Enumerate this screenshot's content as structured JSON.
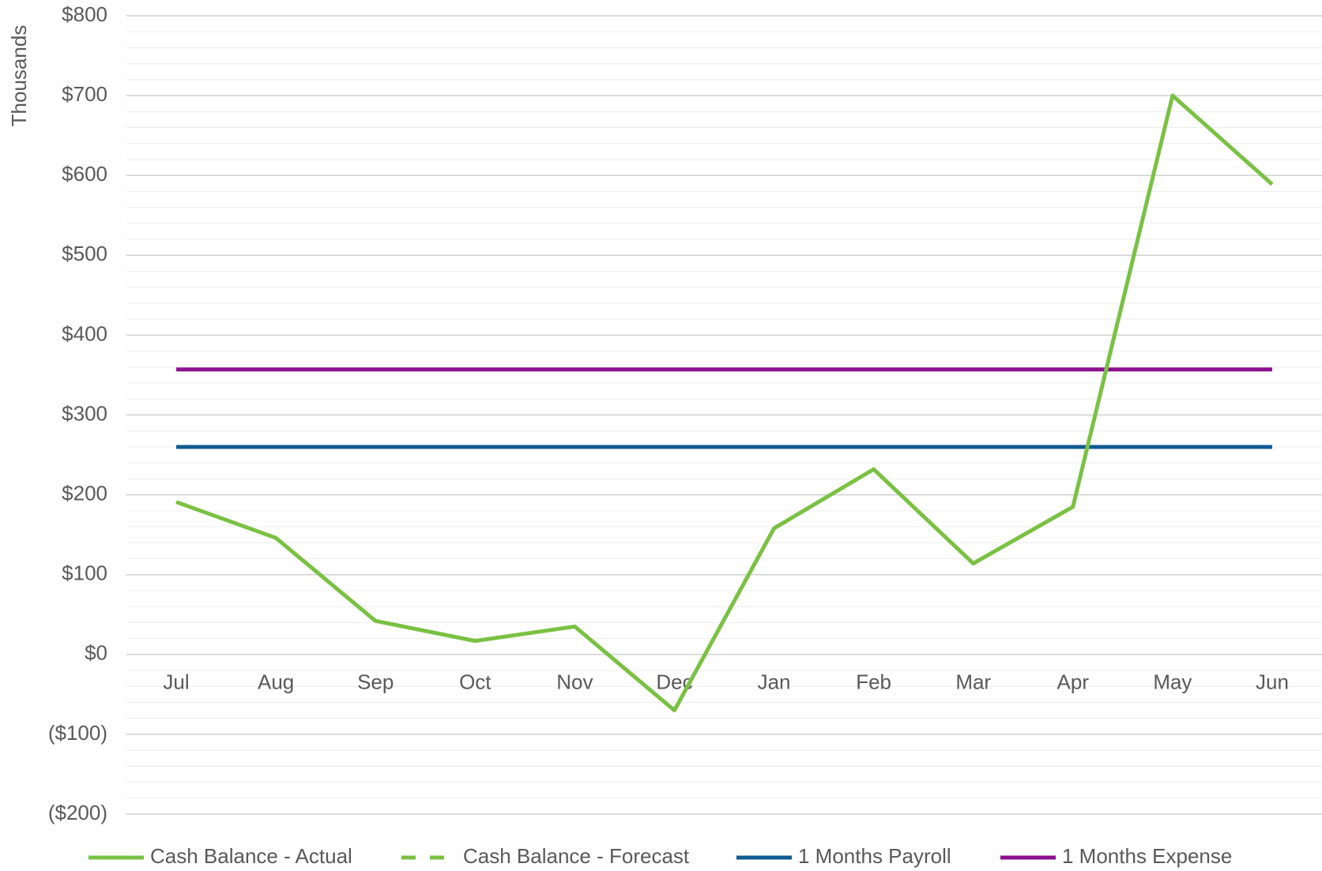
{
  "chart_data": {
    "type": "line",
    "y_axis_label": "Thousands",
    "categories": [
      "Jul",
      "Aug",
      "Sep",
      "Oct",
      "Nov",
      "Dec",
      "Jan",
      "Feb",
      "Mar",
      "Apr",
      "May",
      "Jun"
    ],
    "series": [
      {
        "name": "Cash Balance - Actual",
        "color": "#7ac143",
        "dash": false,
        "values": [
          191,
          146,
          42,
          17,
          35,
          -70,
          158,
          232,
          114,
          185,
          700,
          589
        ]
      },
      {
        "name": "Cash Balance - Forecast",
        "color": "#7ac143",
        "dash": true,
        "values": [
          null,
          null,
          null,
          null,
          null,
          null,
          null,
          null,
          null,
          null,
          null,
          null
        ]
      },
      {
        "name": "1 Months Payroll",
        "color": "#0f5b92",
        "dash": false,
        "values": [
          260,
          260,
          260,
          260,
          260,
          260,
          260,
          260,
          260,
          260,
          260,
          260
        ]
      },
      {
        "name": "1 Months Expense",
        "color": "#8b0f8e",
        "dash": false,
        "values": [
          357,
          357,
          357,
          357,
          357,
          357,
          357,
          357,
          357,
          357,
          357,
          357
        ]
      }
    ],
    "ylim": [
      -200,
      800
    ],
    "yticks": [
      {
        "value": -200,
        "label": "($200)"
      },
      {
        "value": -100,
        "label": "($100)"
      },
      {
        "value": 0,
        "label": "$0"
      },
      {
        "value": 100,
        "label": "$100"
      },
      {
        "value": 200,
        "label": "$200"
      },
      {
        "value": 300,
        "label": "$300"
      },
      {
        "value": 400,
        "label": "$400"
      },
      {
        "value": 500,
        "label": "$500"
      },
      {
        "value": 600,
        "label": "$600"
      },
      {
        "value": 700,
        "label": "$700"
      },
      {
        "value": 800,
        "label": "$800"
      }
    ],
    "grid": true,
    "minor_grid": true,
    "legend": "bottom"
  }
}
